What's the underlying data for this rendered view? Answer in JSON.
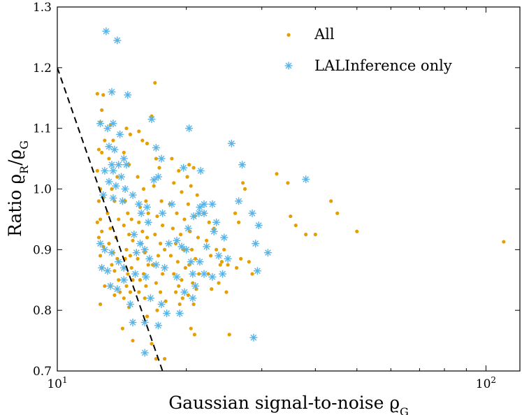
{
  "chart_data": {
    "type": "scatter",
    "title": "",
    "xlabel": "Gaussian signal-to-noise ϱG",
    "ylabel": "Ratio ϱR/ϱG",
    "xscale": "log",
    "xlim": [
      10,
      120
    ],
    "ylim": [
      0.7,
      1.3
    ],
    "x_ticks": [
      {
        "value": 10,
        "base": "10",
        "exp": "1"
      },
      {
        "value": 100,
        "base": "10",
        "exp": "2"
      }
    ],
    "y_ticks": [
      {
        "value": 0.7,
        "label": "0.7"
      },
      {
        "value": 0.8,
        "label": "0.8"
      },
      {
        "value": 0.9,
        "label": "0.9"
      },
      {
        "value": 1.0,
        "label": "1.0"
      },
      {
        "value": 1.1,
        "label": "1.1"
      },
      {
        "value": 1.2,
        "label": "1.2"
      },
      {
        "value": 1.3,
        "label": "1.3"
      }
    ],
    "legend_position": "top-right",
    "threshold_line": {
      "name": "detection threshold",
      "style": "dashed",
      "color": "#000000",
      "points": [
        [
          10,
          1.2
        ],
        [
          17.6,
          0.7
        ]
      ]
    },
    "series": [
      {
        "name": "All",
        "marker": "dot",
        "color": "#E69F00",
        "points": [
          [
            12.4,
            1.157
          ],
          [
            12.8,
            1.155
          ],
          [
            12.7,
            1.13
          ],
          [
            12.6,
            1.11
          ],
          [
            12.9,
            1.08
          ],
          [
            12.5,
            1.065
          ],
          [
            12.7,
            1.06
          ],
          [
            12.4,
            1.03
          ],
          [
            12.6,
            1.0
          ],
          [
            12.8,
            0.985
          ],
          [
            12.5,
            0.98
          ],
          [
            12.6,
            0.95
          ],
          [
            12.4,
            0.945
          ],
          [
            12.7,
            0.93
          ],
          [
            12.5,
            0.92
          ],
          [
            12.8,
            0.905
          ],
          [
            12.6,
            0.89
          ],
          [
            12.7,
            0.87
          ],
          [
            12.9,
            0.84
          ],
          [
            12.6,
            0.81
          ],
          [
            13.3,
            1.105
          ],
          [
            13.5,
            1.08
          ],
          [
            13.2,
            1.05
          ],
          [
            13.8,
            1.02
          ],
          [
            13.4,
            1.0
          ],
          [
            13.6,
            0.98
          ],
          [
            13.1,
            0.96
          ],
          [
            13.9,
            0.95
          ],
          [
            13.3,
            0.935
          ],
          [
            13.7,
            0.92
          ],
          [
            13.2,
            0.91
          ],
          [
            13.5,
            0.895
          ],
          [
            13.8,
            0.885
          ],
          [
            13.4,
            0.875
          ],
          [
            13.6,
            0.865
          ],
          [
            13.9,
            0.85
          ],
          [
            13.3,
            0.84
          ],
          [
            14.0,
            0.83
          ],
          [
            13.6,
            0.825
          ],
          [
            14.2,
            0.77
          ],
          [
            14.5,
            1.1
          ],
          [
            14.8,
            1.09
          ],
          [
            14.3,
            1.06
          ],
          [
            14.7,
            1.04
          ],
          [
            14.4,
            0.98
          ],
          [
            14.6,
            0.96
          ],
          [
            14.9,
            0.95
          ],
          [
            14.3,
            0.94
          ],
          [
            14.7,
            0.925
          ],
          [
            15.0,
            0.915
          ],
          [
            14.5,
            0.9
          ],
          [
            14.8,
            0.89
          ],
          [
            14.4,
            0.885
          ],
          [
            14.9,
            0.87
          ],
          [
            14.6,
            0.86
          ],
          [
            15.0,
            0.85
          ],
          [
            14.5,
            0.84
          ],
          [
            14.8,
            0.83
          ],
          [
            14.3,
            0.82
          ],
          [
            14.7,
            0.805
          ],
          [
            15.0,
            0.75
          ],
          [
            15.5,
            1.095
          ],
          [
            15.8,
            1.08
          ],
          [
            16.2,
            1.075
          ],
          [
            15.4,
            1.02
          ],
          [
            15.9,
            1.0
          ],
          [
            16.1,
            0.98
          ],
          [
            15.6,
            0.97
          ],
          [
            16.3,
            0.96
          ],
          [
            15.5,
            0.945
          ],
          [
            15.8,
            0.93
          ],
          [
            16.2,
            0.92
          ],
          [
            15.7,
            0.91
          ],
          [
            16.0,
            0.895
          ],
          [
            15.4,
            0.885
          ],
          [
            16.3,
            0.875
          ],
          [
            15.9,
            0.86
          ],
          [
            15.6,
            0.85
          ],
          [
            16.1,
            0.84
          ],
          [
            15.5,
            0.83
          ],
          [
            16.0,
            0.82
          ],
          [
            16.2,
            0.79
          ],
          [
            16.6,
            0.745
          ],
          [
            16.9,
            1.175
          ],
          [
            16.6,
            1.12
          ],
          [
            17.0,
            1.05
          ],
          [
            17.3,
            1.035
          ],
          [
            16.8,
            1.005
          ],
          [
            17.5,
            0.98
          ],
          [
            17.1,
            0.955
          ],
          [
            17.6,
            0.94
          ],
          [
            16.9,
            0.925
          ],
          [
            17.4,
            0.91
          ],
          [
            17.8,
            0.9
          ],
          [
            17.2,
            0.89
          ],
          [
            16.7,
            0.875
          ],
          [
            17.6,
            0.86
          ],
          [
            17.0,
            0.845
          ],
          [
            17.4,
            0.83
          ],
          [
            17.9,
            0.815
          ],
          [
            17.1,
            0.8
          ],
          [
            17.0,
            0.72
          ],
          [
            17.8,
            0.72
          ],
          [
            18.5,
            1.05
          ],
          [
            19.2,
            1.03
          ],
          [
            18.7,
            1.01
          ],
          [
            19.5,
            0.995
          ],
          [
            18.3,
            0.975
          ],
          [
            19.0,
            0.96
          ],
          [
            19.8,
            0.95
          ],
          [
            18.6,
            0.935
          ],
          [
            19.4,
            0.925
          ],
          [
            18.9,
            0.91
          ],
          [
            19.7,
            0.9
          ],
          [
            18.4,
            0.89
          ],
          [
            19.1,
            0.88
          ],
          [
            19.9,
            0.87
          ],
          [
            18.7,
            0.86
          ],
          [
            19.5,
            0.85
          ],
          [
            19.2,
            0.84
          ],
          [
            18.9,
            0.83
          ],
          [
            19.6,
            0.82
          ],
          [
            19.3,
            0.81
          ],
          [
            20.3,
            1.04
          ],
          [
            20.8,
            1.035
          ],
          [
            20.1,
            1.02
          ],
          [
            20.5,
            1.005
          ],
          [
            21.2,
            0.99
          ],
          [
            20.2,
            0.975
          ],
          [
            20.9,
            0.955
          ],
          [
            20.4,
            0.93
          ],
          [
            21.3,
            0.92
          ],
          [
            20.6,
            0.9
          ],
          [
            21.0,
            0.885
          ],
          [
            20.3,
            0.875
          ],
          [
            21.4,
            0.86
          ],
          [
            20.7,
            0.845
          ],
          [
            21.1,
            0.835
          ],
          [
            20.2,
            0.825
          ],
          [
            20.8,
            0.81
          ],
          [
            20.5,
            0.77
          ],
          [
            20.9,
            0.76
          ],
          [
            22.0,
            0.96
          ],
          [
            22.6,
            0.945
          ],
          [
            23.2,
            0.935
          ],
          [
            22.3,
            0.915
          ],
          [
            23.5,
            0.9
          ],
          [
            22.8,
            0.89
          ],
          [
            24.0,
            0.875
          ],
          [
            22.5,
            0.86
          ],
          [
            23.8,
            0.845
          ],
          [
            22.9,
            0.835
          ],
          [
            24.5,
            0.9
          ],
          [
            24.2,
            0.88
          ],
          [
            25.0,
            0.875
          ],
          [
            24.8,
            0.83
          ],
          [
            25.2,
            0.76
          ],
          [
            26.0,
            0.96
          ],
          [
            26.5,
            0.945
          ],
          [
            27.1,
            1.01
          ],
          [
            27.4,
            1.0
          ],
          [
            26.8,
            0.885
          ],
          [
            26.2,
            0.87
          ],
          [
            28.0,
            0.88
          ],
          [
            28.5,
            0.86
          ],
          [
            32.5,
            1.025
          ],
          [
            34.5,
            1.01
          ],
          [
            35.0,
            0.955
          ],
          [
            36.0,
            0.94
          ],
          [
            38.0,
            0.925
          ],
          [
            40.0,
            0.925
          ],
          [
            43.5,
            0.98
          ],
          [
            45.0,
            0.96
          ],
          [
            50.0,
            0.93
          ],
          [
            110.0,
            0.913
          ]
        ]
      },
      {
        "name": "LALInference only",
        "marker": "asterisk",
        "color": "#56B4E9",
        "points": [
          [
            13.0,
            1.26
          ],
          [
            13.8,
            1.245
          ],
          [
            13.4,
            1.16
          ],
          [
            14.6,
            1.155
          ],
          [
            12.6,
            1.108
          ],
          [
            13.5,
            1.108
          ],
          [
            13.1,
            1.1
          ],
          [
            14.0,
            1.09
          ],
          [
            13.2,
            1.07
          ],
          [
            13.6,
            1.065
          ],
          [
            14.3,
            1.05
          ],
          [
            13.4,
            1.04
          ],
          [
            13.9,
            1.04
          ],
          [
            14.5,
            1.04
          ],
          [
            12.9,
            1.03
          ],
          [
            13.5,
            1.03
          ],
          [
            14.1,
            1.02
          ],
          [
            13.2,
            1.012
          ],
          [
            13.7,
            1.005
          ],
          [
            14.4,
            1.0
          ],
          [
            12.8,
            0.99
          ],
          [
            13.5,
            0.985
          ],
          [
            14.2,
            0.98
          ],
          [
            15.0,
            0.99
          ],
          [
            15.5,
            0.975
          ],
          [
            16.2,
            0.97
          ],
          [
            16.8,
            1.015
          ],
          [
            17.2,
            1.02
          ],
          [
            17.5,
            1.05
          ],
          [
            17.0,
            1.068
          ],
          [
            16.6,
            1.115
          ],
          [
            16.3,
            0.945
          ],
          [
            15.7,
            0.96
          ],
          [
            15.1,
            0.925
          ],
          [
            15.6,
            0.91
          ],
          [
            16.0,
            0.9
          ],
          [
            15.3,
            0.895
          ],
          [
            16.4,
            0.885
          ],
          [
            17.0,
            0.875
          ],
          [
            17.8,
            0.87
          ],
          [
            15.2,
            0.86
          ],
          [
            16.1,
            0.855
          ],
          [
            14.3,
            0.85
          ],
          [
            13.3,
            0.84
          ],
          [
            13.8,
            0.835
          ],
          [
            12.6,
            0.91
          ],
          [
            12.9,
            0.9
          ],
          [
            13.4,
            0.895
          ],
          [
            13.9,
            0.88
          ],
          [
            14.3,
            0.87
          ],
          [
            12.7,
            0.87
          ],
          [
            13.1,
            0.865
          ],
          [
            14.8,
            0.81
          ],
          [
            15.0,
            0.78
          ],
          [
            16.0,
            0.78
          ],
          [
            17.2,
            0.775
          ],
          [
            16.0,
            0.73
          ],
          [
            16.5,
            0.82
          ],
          [
            17.5,
            0.81
          ],
          [
            18.0,
            0.795
          ],
          [
            19.3,
            0.795
          ],
          [
            17.6,
            0.96
          ],
          [
            18.5,
            0.975
          ],
          [
            18.2,
            0.91
          ],
          [
            19.0,
            0.915
          ],
          [
            19.5,
            0.905
          ],
          [
            20.0,
            0.9
          ],
          [
            20.2,
            0.935
          ],
          [
            20.8,
            0.955
          ],
          [
            21.4,
            0.96
          ],
          [
            21.5,
            0.97
          ],
          [
            22.0,
            0.96
          ],
          [
            20.3,
            1.1
          ],
          [
            19.7,
            1.035
          ],
          [
            21.6,
            1.03
          ],
          [
            22.0,
            0.975
          ],
          [
            23.0,
            0.975
          ],
          [
            23.5,
            0.945
          ],
          [
            23.2,
            0.93
          ],
          [
            24.5,
            0.92
          ],
          [
            22.3,
            0.905
          ],
          [
            23.8,
            0.89
          ],
          [
            25.0,
            0.885
          ],
          [
            21.5,
            0.88
          ],
          [
            20.5,
            0.88
          ],
          [
            20.7,
            0.86
          ],
          [
            22.0,
            0.86
          ],
          [
            23.0,
            0.855
          ],
          [
            24.3,
            0.86
          ],
          [
            20.7,
            0.82
          ],
          [
            19.8,
            0.83
          ],
          [
            21.0,
            0.84
          ],
          [
            19.0,
            0.855
          ],
          [
            25.5,
            1.075
          ],
          [
            26.5,
            0.98
          ],
          [
            27.0,
            1.04
          ],
          [
            28.5,
            0.96
          ],
          [
            29.5,
            0.94
          ],
          [
            29.0,
            0.91
          ],
          [
            29.3,
            0.865
          ],
          [
            28.7,
            0.755
          ],
          [
            31.0,
            0.895
          ],
          [
            38.0,
            1.016
          ]
        ]
      }
    ]
  }
}
